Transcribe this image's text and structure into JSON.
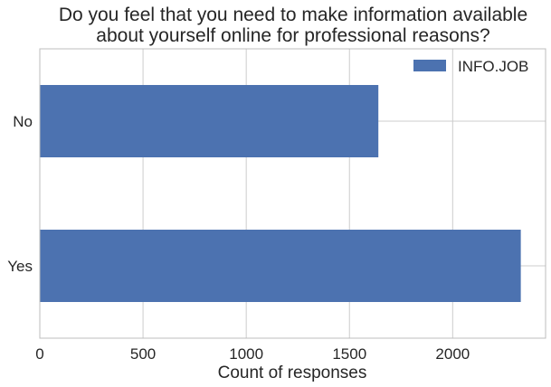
{
  "chart_data": {
    "type": "bar",
    "orientation": "horizontal",
    "title_lines": [
      "Do you feel that you need to make information available",
      "about yourself online for professional reasons?"
    ],
    "categories": [
      "No",
      "Yes"
    ],
    "series": [
      {
        "name": "INFO.JOB",
        "values": [
          1640,
          2330
        ]
      }
    ],
    "xlabel": "Count of responses",
    "ylabel": "",
    "xlim": [
      0,
      2450
    ],
    "xticks": [
      0,
      500,
      1000,
      1500,
      2000
    ],
    "grid": true,
    "legend_position": "top-right",
    "colors": {
      "bar": "#4c72b0",
      "grid": "#cccccc"
    }
  }
}
